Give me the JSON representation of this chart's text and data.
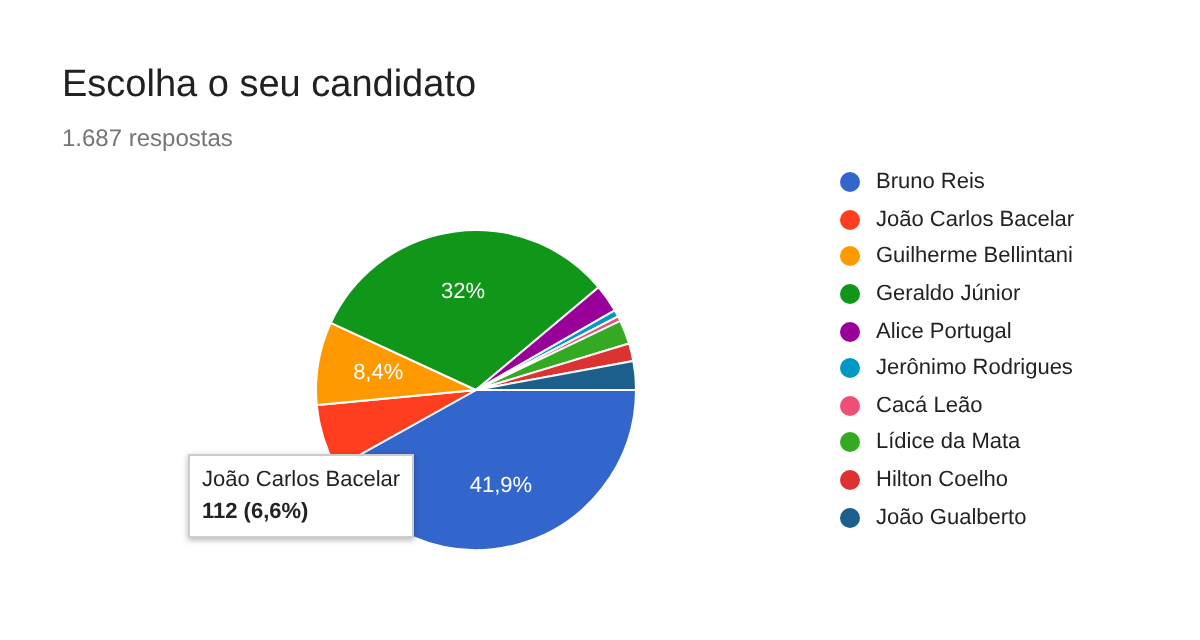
{
  "chart_data": {
    "type": "pie",
    "title": "Escolha o seu candidato",
    "subtitle": "1.687 respostas",
    "categories": [
      "Bruno Reis",
      "João Carlos Bacelar",
      "Guilherme Bellintani",
      "Geraldo Júnior",
      "Alice Portugal",
      "Jerônimo Rodrigues",
      "Cacá Leão",
      "Lídice da Mata",
      "Hilton Coelho",
      "João Gualberto"
    ],
    "values": [
      41.9,
      6.6,
      8.4,
      32,
      2.8,
      0.7,
      0.5,
      2.4,
      1.8,
      2.9
    ],
    "colors": [
      "#3366cc",
      "#ff3d1f",
      "#ff9900",
      "#109618",
      "#990099",
      "#0099c6",
      "#ee4f77",
      "#33aa22",
      "#dc3232",
      "#1c5e8c"
    ],
    "value_labels": [
      "41,9%",
      null,
      "8,4%",
      "32%",
      null,
      null,
      null,
      null,
      null,
      null
    ],
    "legend": "right",
    "annotations": [
      "João Carlos Bacelar\n112 (6,6%)"
    ]
  }
}
